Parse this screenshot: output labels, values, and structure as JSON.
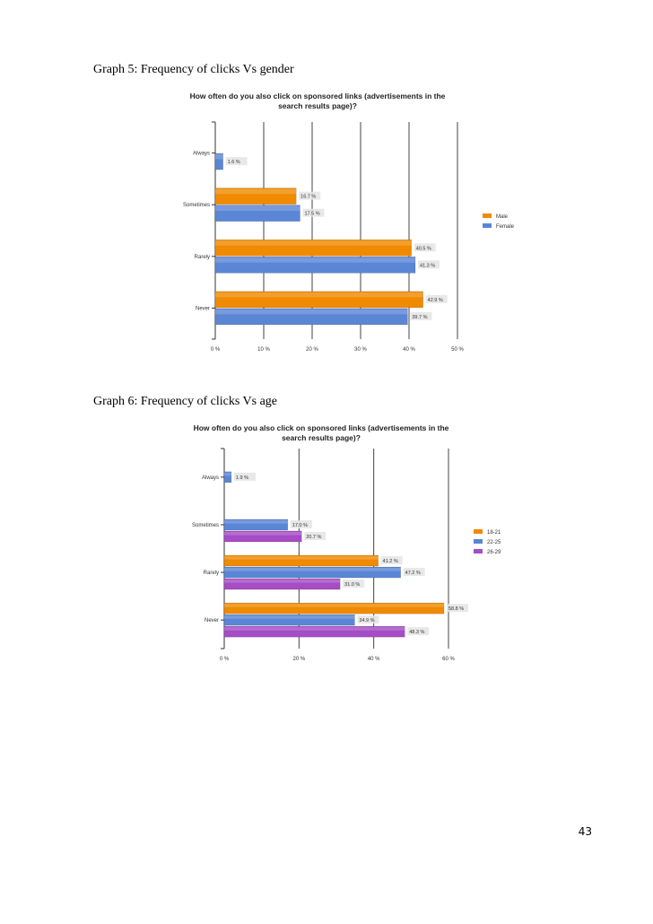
{
  "page": {
    "captions": [
      "Graph 5: Frequency of clicks Vs gender",
      "Graph 6: Frequency of clicks Vs age"
    ],
    "page_number": "43"
  },
  "chart_data": [
    {
      "type": "bar",
      "orientation": "horizontal",
      "title": "How often do you also click on sponsored links (advertisements in the search results page)?",
      "categories": [
        "Always",
        "Sometimes",
        "Rarely",
        "Never"
      ],
      "series": [
        {
          "name": "Male",
          "color": "#f08a00",
          "values": [
            null,
            16.7,
            40.5,
            42.9
          ],
          "labels": [
            null,
            "16.7 %",
            "40.5 %",
            "42.9 %"
          ]
        },
        {
          "name": "Female",
          "color": "#5b86d6",
          "values": [
            1.6,
            17.5,
            41.3,
            39.7
          ],
          "labels": [
            "1.6 %",
            "17.5 %",
            "41.3 %",
            "39.7 %"
          ]
        }
      ],
      "xlim": [
        0,
        50
      ],
      "xticks": [
        0,
        10,
        20,
        30,
        40,
        50
      ],
      "xtick_labels": [
        "0 %",
        "10 %",
        "20 %",
        "30 %",
        "40 %",
        "50 %"
      ],
      "grid": true,
      "legend_position": "right"
    },
    {
      "type": "bar",
      "orientation": "horizontal",
      "title": "How often do you also click on sponsored links (advertisements in the search results page)?",
      "categories": [
        "Always",
        "Sometimes",
        "Rarely",
        "Never"
      ],
      "series": [
        {
          "name": "18-21",
          "color": "#f08a00",
          "values": [
            null,
            null,
            41.2,
            58.8
          ],
          "labels": [
            null,
            null,
            "41.2 %",
            "58.8 %"
          ]
        },
        {
          "name": "22-25",
          "color": "#5b86d6",
          "values": [
            1.9,
            17.0,
            47.2,
            34.9
          ],
          "labels": [
            "1.9 %",
            "17.0 %",
            "47.2 %",
            "34.9 %"
          ]
        },
        {
          "name": "26-29",
          "color": "#a64cc6",
          "values": [
            null,
            20.7,
            31.0,
            48.3
          ],
          "labels": [
            null,
            "20.7 %",
            "31.0 %",
            "48.3 %"
          ]
        }
      ],
      "xlim": [
        0,
        60
      ],
      "xticks": [
        0,
        20,
        40,
        60
      ],
      "xtick_labels": [
        "0 %",
        "20 %",
        "40 %",
        "60 %"
      ],
      "grid": true,
      "legend_position": "right"
    }
  ]
}
